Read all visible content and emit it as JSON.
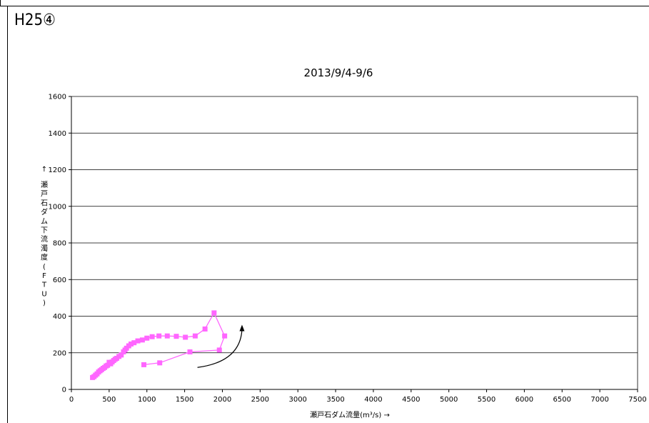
{
  "panel_label": "H25④",
  "chart_data": {
    "type": "scatter",
    "title": "2013/9/4-9/6",
    "xlabel": "瀬戸石ダム流量(m³/s) →",
    "ylabel": "↑瀬戸石ダム下流濁度(FTU)",
    "ylabel_chars": [
      "瀬",
      "戸",
      "石",
      "ダ",
      "ム",
      "下",
      "流",
      "濁",
      "度",
      "(",
      "F",
      "T",
      "U",
      ")"
    ],
    "xlim": [
      0,
      7500
    ],
    "ylim": [
      0,
      1600
    ],
    "xticks": [
      0,
      500,
      1000,
      1500,
      2000,
      2500,
      3000,
      3500,
      4000,
      4500,
      5000,
      5500,
      6000,
      6500,
      7000,
      7500
    ],
    "yticks": [
      0,
      200,
      400,
      600,
      800,
      1000,
      1200,
      1400,
      1600
    ],
    "grid": "horizontal",
    "series_color": "#ff66ff",
    "series": [
      {
        "x": [
          280,
          300,
          320,
          340,
          360,
          380,
          400,
          420,
          440,
          460,
          480,
          500,
          520,
          540,
          560,
          580,
          600,
          630,
          660,
          690,
          710,
          730,
          760,
          790,
          830,
          880,
          940,
          1000,
          1070,
          1160,
          1270,
          1390,
          1510,
          1640,
          1770,
          1890,
          2030,
          1960,
          1570,
          1170,
          960
        ],
        "y": [
          65,
          70,
          78,
          85,
          95,
          102,
          108,
          115,
          120,
          128,
          132,
          148,
          140,
          150,
          158,
          165,
          170,
          180,
          188,
          205,
          215,
          225,
          238,
          248,
          255,
          265,
          270,
          280,
          288,
          292,
          292,
          290,
          285,
          292,
          330,
          418,
          292,
          215,
          205,
          145,
          135
        ]
      }
    ],
    "annotation": {
      "type": "arrow",
      "color": "#000000",
      "from": [
        1670,
        120
      ],
      "to": [
        2260,
        330
      ]
    }
  }
}
